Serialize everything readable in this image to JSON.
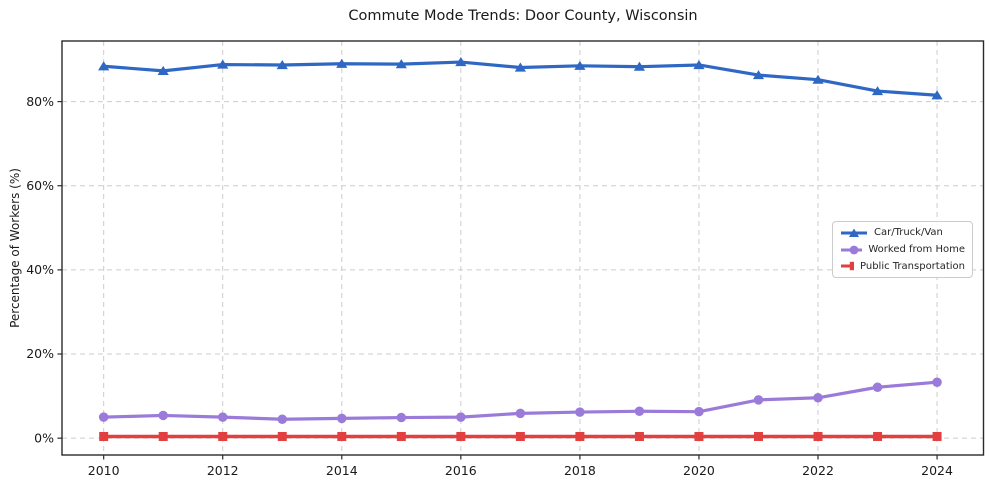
{
  "chart_data": {
    "type": "line",
    "title": "Commute Mode Trends: Door County, Wisconsin",
    "xlabel": "",
    "ylabel": "Percentage of Workers (%)",
    "x": [
      2010,
      2011,
      2012,
      2013,
      2014,
      2015,
      2016,
      2017,
      2018,
      2019,
      2020,
      2021,
      2022,
      2023,
      2024
    ],
    "series": [
      {
        "name": "Car/Truck/Van",
        "color": "#2e68c4",
        "marker": "triangle",
        "values": [
          88.4,
          87.3,
          88.8,
          88.7,
          89.0,
          88.9,
          89.4,
          88.1,
          88.5,
          88.3,
          88.7,
          86.3,
          85.2,
          82.5,
          81.5
        ]
      },
      {
        "name": "Worked from Home",
        "color": "#9a7bd9",
        "marker": "circle",
        "values": [
          5.0,
          5.4,
          5.0,
          4.5,
          4.7,
          4.9,
          5.0,
          5.9,
          6.2,
          6.4,
          6.3,
          9.1,
          9.6,
          12.1,
          13.3
        ]
      },
      {
        "name": "Public Transportation",
        "color": "#e24040",
        "marker": "square",
        "values": [
          0.4,
          0.4,
          0.4,
          0.4,
          0.4,
          0.4,
          0.4,
          0.4,
          0.4,
          0.4,
          0.4,
          0.4,
          0.4,
          0.4,
          0.4
        ]
      }
    ],
    "x_ticks": {
      "values": [
        2010,
        2012,
        2014,
        2016,
        2018,
        2020,
        2022,
        2024
      ],
      "labels": [
        "2010",
        "2012",
        "2014",
        "2016",
        "2018",
        "2020",
        "2022",
        "2024"
      ]
    },
    "y_ticks": {
      "values": [
        0,
        20,
        40,
        60,
        80
      ],
      "labels": [
        "0%",
        "20%",
        "40%",
        "60%",
        "80%"
      ]
    },
    "xlim": [
      2009.3,
      2024.78
    ],
    "ylim": [
      -4,
      94.4
    ],
    "grid": true,
    "legend_position": "center right",
    "grid_color": "#cccccc",
    "spine_color": "#2a2a2a",
    "text_color": "#1a1a1a"
  }
}
